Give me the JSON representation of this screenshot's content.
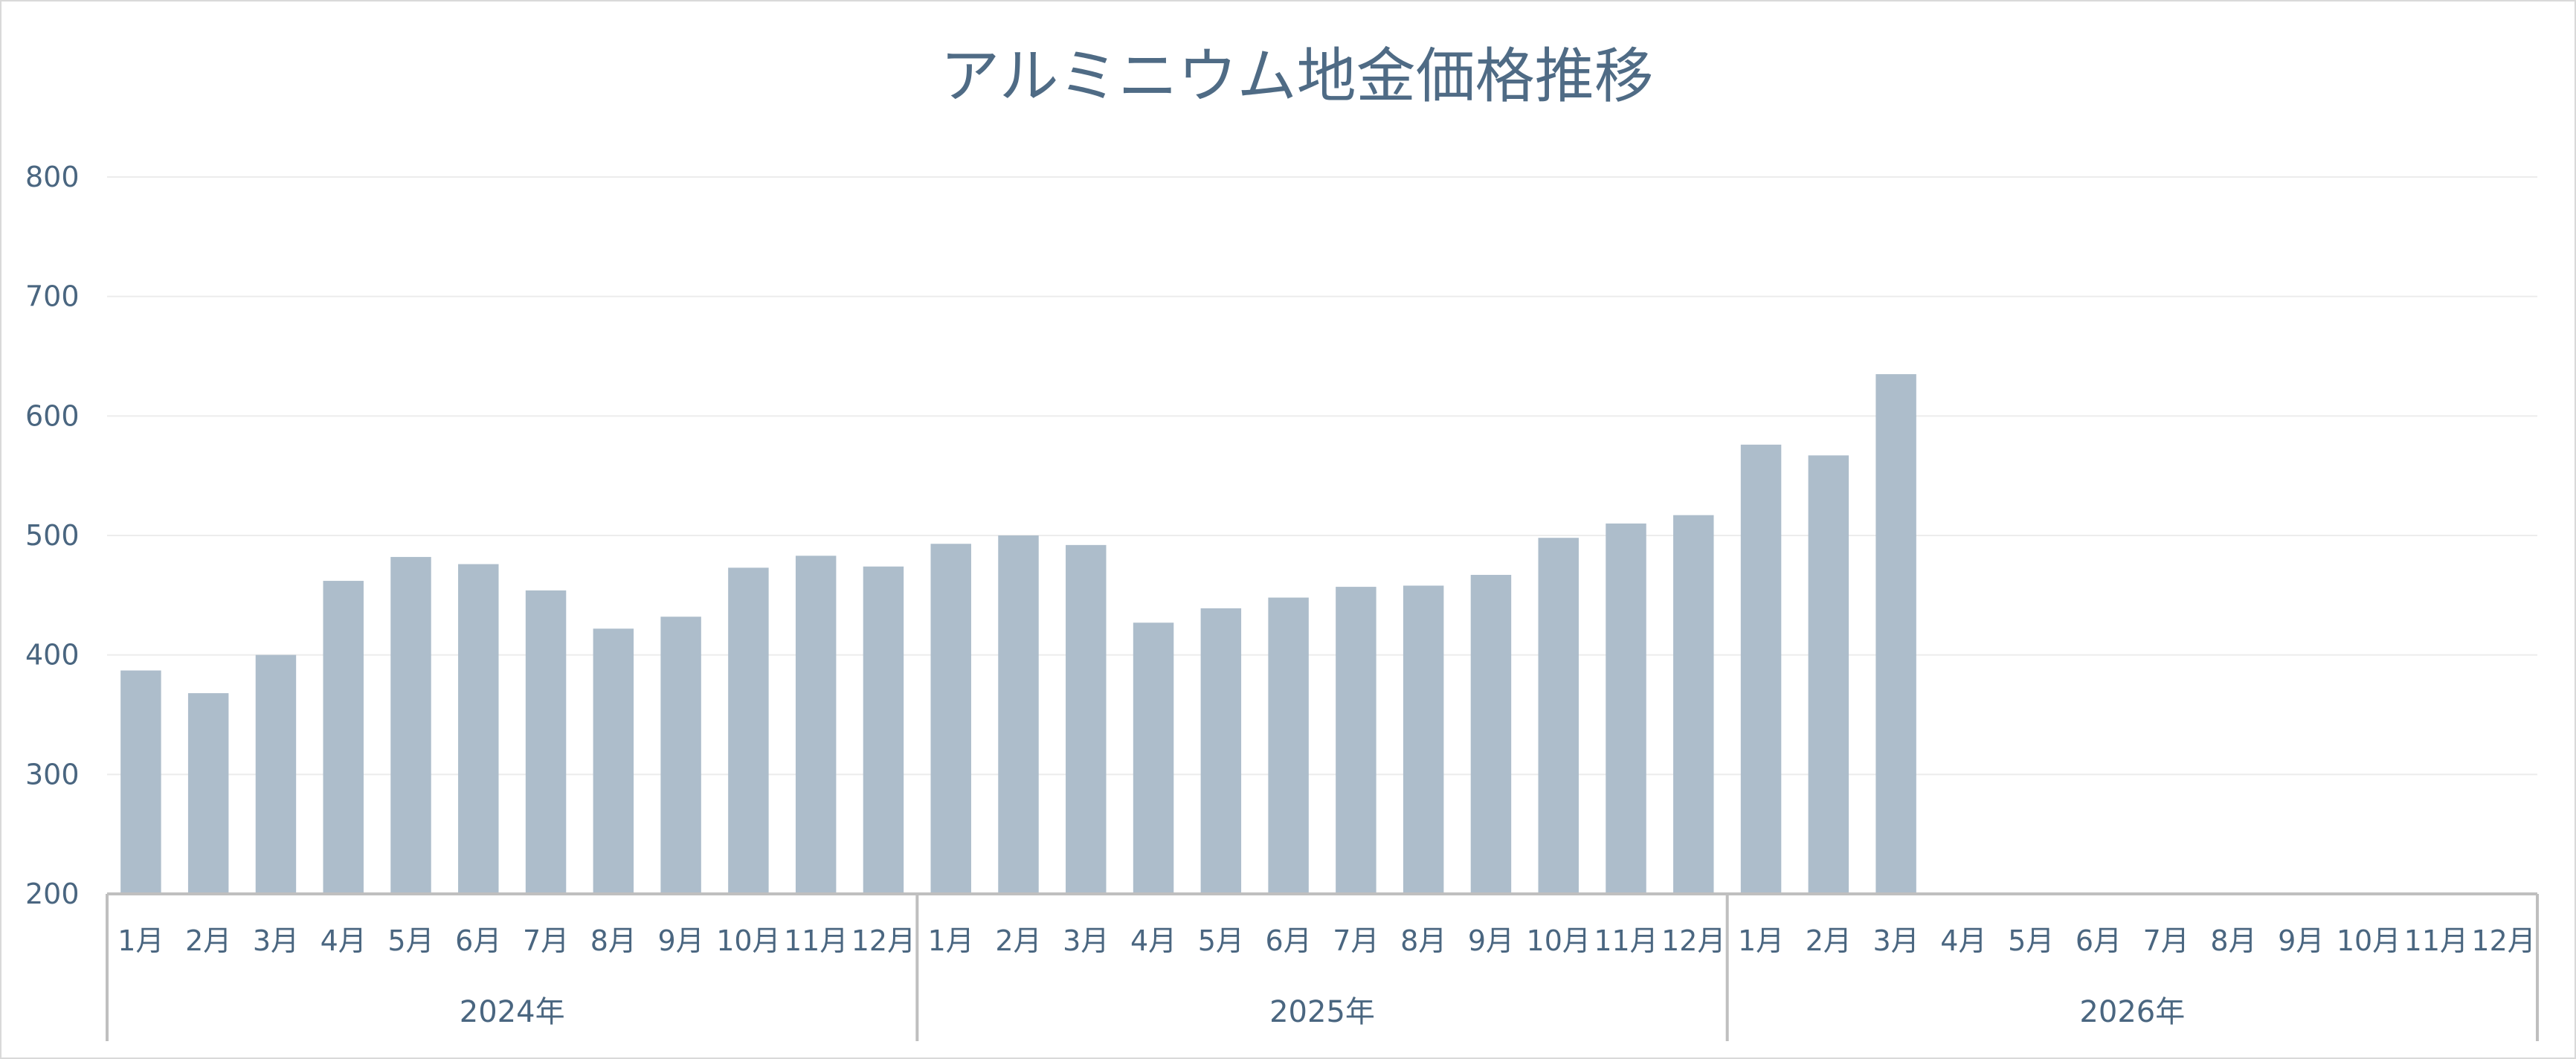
{
  "chart_data": {
    "type": "bar",
    "title": "アルミニウム地金価格推移",
    "xlabel": "",
    "ylabel": "",
    "ylim": [
      200,
      800
    ],
    "yticks": [
      200,
      300,
      400,
      500,
      600,
      700,
      800
    ],
    "grid": true,
    "legend": "none",
    "bar_color": "#adbdcb",
    "groups": [
      {
        "year": "2024年",
        "months": [
          "1月",
          "2月",
          "3月",
          "4月",
          "5月",
          "6月",
          "7月",
          "8月",
          "9月",
          "10月",
          "11月",
          "12月"
        ],
        "values": [
          387,
          368,
          400,
          462,
          482,
          476,
          454,
          422,
          432,
          473,
          483,
          474
        ]
      },
      {
        "year": "2025年",
        "months": [
          "1月",
          "2月",
          "3月",
          "4月",
          "5月",
          "6月",
          "7月",
          "8月",
          "9月",
          "10月",
          "11月",
          "12月"
        ],
        "values": [
          493,
          500,
          492,
          427,
          439,
          448,
          457,
          458,
          467,
          498,
          510,
          517
        ]
      },
      {
        "year": "2026年",
        "months": [
          "1月",
          "2月",
          "3月",
          "4月",
          "5月",
          "6月",
          "7月",
          "8月",
          "9月",
          "10月",
          "11月",
          "12月"
        ],
        "values": [
          576,
          567,
          635,
          null,
          null,
          null,
          null,
          null,
          null,
          null,
          null,
          null
        ]
      }
    ]
  }
}
